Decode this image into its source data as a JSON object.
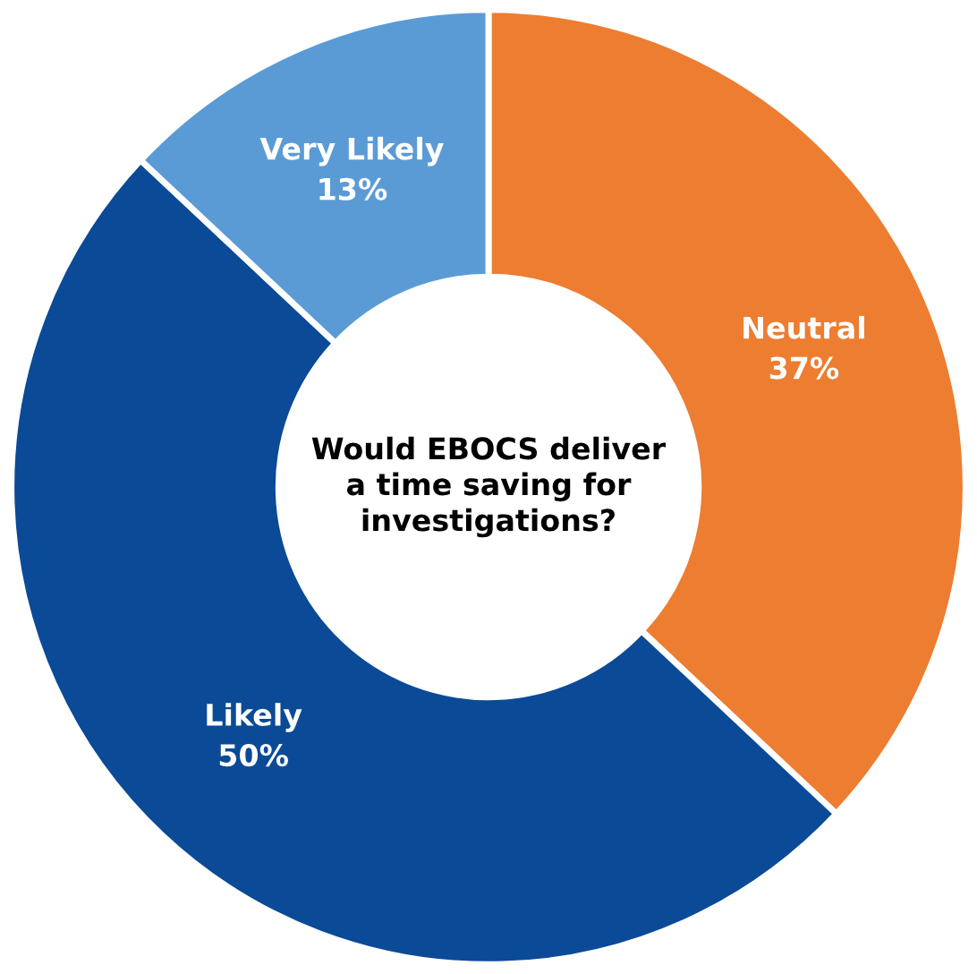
{
  "chart_data": {
    "type": "donut",
    "title": "Would EBOCS deliver a time saving for investigations?",
    "categories": [
      "Neutral",
      "Likely",
      "Very Likely"
    ],
    "values": [
      37,
      50,
      13
    ],
    "colors": [
      "#ed7d31",
      "#0b4a96",
      "#5b9bd5"
    ],
    "value_labels": [
      "37%",
      "50%",
      "13%"
    ],
    "legend": false
  }
}
